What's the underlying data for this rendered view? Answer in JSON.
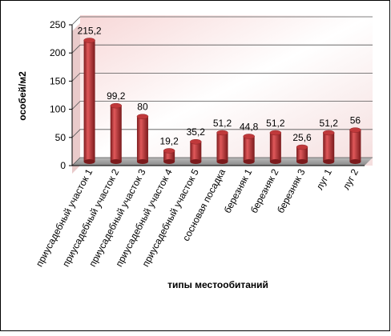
{
  "chart_data": {
    "type": "bar",
    "y_label": "особей/м2",
    "x_label": "типы местообитаний",
    "categories": [
      "приусадебный участок 1",
      "приусадебный участок 2",
      "приусадебный участок 3",
      "приусадебный участок 4",
      "приусадебный участок 5",
      "сосновая посадка",
      "березняк 1",
      "березняк 2",
      "березняк 3",
      "луг 1",
      "луг 2"
    ],
    "values": [
      215.2,
      99.2,
      80,
      19.2,
      35.2,
      51.2,
      44.8,
      51.2,
      25.6,
      51.2,
      56
    ],
    "value_labels": [
      "215,2",
      "99,2",
      "80",
      "19,2",
      "35,2",
      "51,2",
      "44,8",
      "51,2",
      "25,6",
      "51,2",
      "56"
    ],
    "color": "#c0393b",
    "ylim": [
      0,
      250
    ],
    "yticks": [
      0,
      50,
      100,
      150,
      200,
      250
    ],
    "grid": true
  }
}
